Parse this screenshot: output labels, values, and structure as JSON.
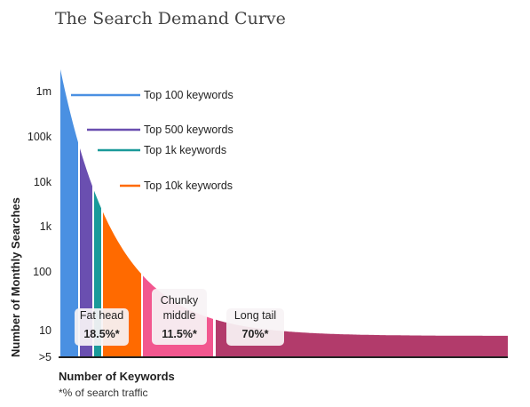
{
  "chart_data": {
    "type": "area",
    "title": "The Search Demand Curve",
    "xlabel": "Number of Keywords",
    "ylabel": "Number of Monthly Searches",
    "footnote": "*% of search traffic",
    "y_scale": "log",
    "y_ticks": [
      ">5",
      "10",
      "100",
      "1k",
      "10k",
      "100k",
      "1m"
    ],
    "annotations": [
      {
        "label": "Top 100 keywords",
        "color": "#4a90e2"
      },
      {
        "label": "Top 500 keywords",
        "color": "#6a4fb0"
      },
      {
        "label": "Top 1k keywords",
        "color": "#1a9a9a"
      },
      {
        "label": "Top 10k keywords",
        "color": "#ff6a00"
      }
    ],
    "segments": [
      {
        "name": "Fat head",
        "traffic_share": "18.5%*",
        "color": "#4a90e2"
      },
      {
        "name": "Fat head",
        "traffic_share": "18.5%*",
        "color": "#6a4fb0"
      },
      {
        "name": "Fat head",
        "traffic_share": "18.5%*",
        "color": "#1a9a9a"
      },
      {
        "name": "Fat head",
        "traffic_share": "18.5%*",
        "color": "#ff6a00"
      },
      {
        "name": "Chunky middle",
        "traffic_share": "11.5%*",
        "color": "#f2578f"
      },
      {
        "name": "Long tail",
        "traffic_share": "70%*",
        "color": "#b23b6b"
      }
    ],
    "groups": [
      {
        "name": "Fat head",
        "traffic_share": "18.5%*"
      },
      {
        "name": "Chunky middle",
        "traffic_share": "11.5%*"
      },
      {
        "name": "Long tail",
        "traffic_share": "70%*"
      }
    ]
  }
}
